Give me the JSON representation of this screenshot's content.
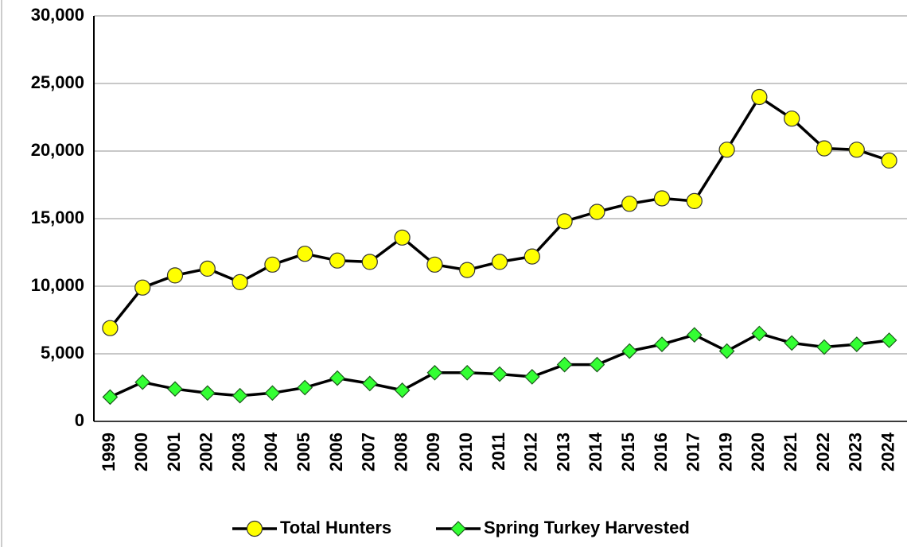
{
  "chart_data": {
    "type": "line",
    "categories": [
      "1999",
      "2000",
      "2001",
      "2002",
      "2003",
      "2004",
      "2005",
      "2006",
      "2007",
      "2008",
      "2009",
      "2010",
      "2011",
      "2012",
      "2013",
      "2014",
      "2015",
      "2016",
      "2017",
      "2019",
      "2020",
      "2021",
      "2022",
      "2023",
      "2024"
    ],
    "series": [
      {
        "name": "Total Hunters",
        "color": "#ffff00",
        "marker": "circle",
        "values": [
          6900,
          9900,
          10800,
          11300,
          10300,
          11600,
          12400,
          11900,
          11800,
          13600,
          11600,
          11200,
          11800,
          12200,
          14800,
          15500,
          16100,
          16500,
          16300,
          20100,
          24000,
          22400,
          20200,
          20100,
          19300
        ]
      },
      {
        "name": "Spring Turkey Harvested",
        "color": "#33ff33",
        "marker": "diamond",
        "values": [
          1800,
          2900,
          2400,
          2100,
          1900,
          2100,
          2500,
          3200,
          2800,
          2300,
          3600,
          3600,
          3500,
          3300,
          4200,
          4200,
          5200,
          5700,
          6400,
          5200,
          6500,
          5800,
          5500,
          5700,
          6000
        ]
      }
    ],
    "ylim": [
      0,
      30000
    ],
    "yticks": [
      0,
      {
        "value": 5000,
        "label": "5,000"
      },
      {
        "value": 10000,
        "label": "10,000"
      },
      {
        "value": 15000,
        "label": "15,000"
      },
      {
        "value": 20000,
        "label": "20,000"
      },
      {
        "value": 25000,
        "label": "25,000"
      },
      {
        "value": 30000,
        "label": "30,000"
      }
    ],
    "grid": true,
    "legend": "bottom"
  }
}
